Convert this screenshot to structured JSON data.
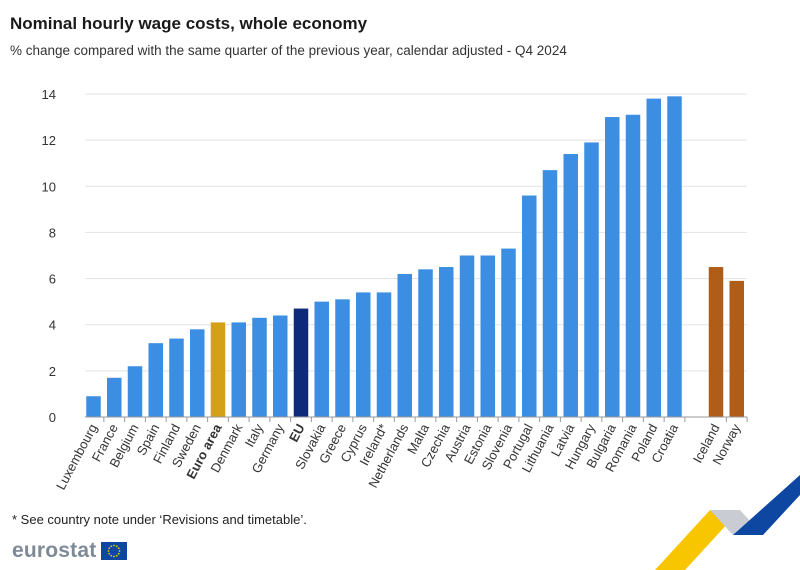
{
  "colors": {
    "country": "#3b8ee1",
    "euro_area": "#d4a017",
    "eu": "#0e2a78",
    "efta": "#b05d1a",
    "grid": "#e3e3e3",
    "axis": "#9a9a9a",
    "logo_blue": "#0d47a1",
    "logo_star": "#f5c800"
  },
  "chart_data": {
    "type": "bar",
    "title": "Nominal hourly wage costs, whole economy",
    "subtitle": "% change compared with the same quarter of the previous year, calendar adjusted - Q4 2024",
    "xlabel": "",
    "ylabel": "",
    "ylim": [
      0,
      14
    ],
    "yticks": [
      0,
      2,
      4,
      6,
      8,
      10,
      12,
      14
    ],
    "grid": true,
    "categories": [
      "Luxembourg",
      "France",
      "Belgium",
      "Spain",
      "Finland",
      "Sweden",
      "Euro area",
      "Denmark",
      "Italy",
      "Germany",
      "EU",
      "Slovakia",
      "Greece",
      "Cyprus",
      "Ireland*",
      "Netherlands",
      "Malta",
      "Czechia",
      "Austria",
      "Estonia",
      "Slovenia",
      "Portugal",
      "Lithuania",
      "Latvia",
      "Hungary",
      "Bulgaria",
      "Romania",
      "Poland",
      "Croatia",
      "Iceland",
      "Norway"
    ],
    "values": [
      0.9,
      1.7,
      2.2,
      3.2,
      3.4,
      3.8,
      4.1,
      4.1,
      4.3,
      4.4,
      4.7,
      5.0,
      5.1,
      5.4,
      5.4,
      6.2,
      6.4,
      6.5,
      7.0,
      7.0,
      7.3,
      9.6,
      10.7,
      11.4,
      11.9,
      13.0,
      13.1,
      13.8,
      13.9,
      6.5,
      5.9
    ],
    "groups": [
      "country",
      "country",
      "country",
      "country",
      "country",
      "country",
      "euro_area",
      "country",
      "country",
      "country",
      "eu",
      "country",
      "country",
      "country",
      "country",
      "country",
      "country",
      "country",
      "country",
      "country",
      "country",
      "country",
      "country",
      "country",
      "country",
      "country",
      "country",
      "country",
      "country",
      "efta",
      "efta"
    ],
    "bold_labels": [
      "Euro area",
      "EU"
    ]
  },
  "footnote": "* See country note under ‘Revisions and timetable’.",
  "logo": {
    "text": "eurostat",
    "icon": "eu-flag-icon"
  }
}
